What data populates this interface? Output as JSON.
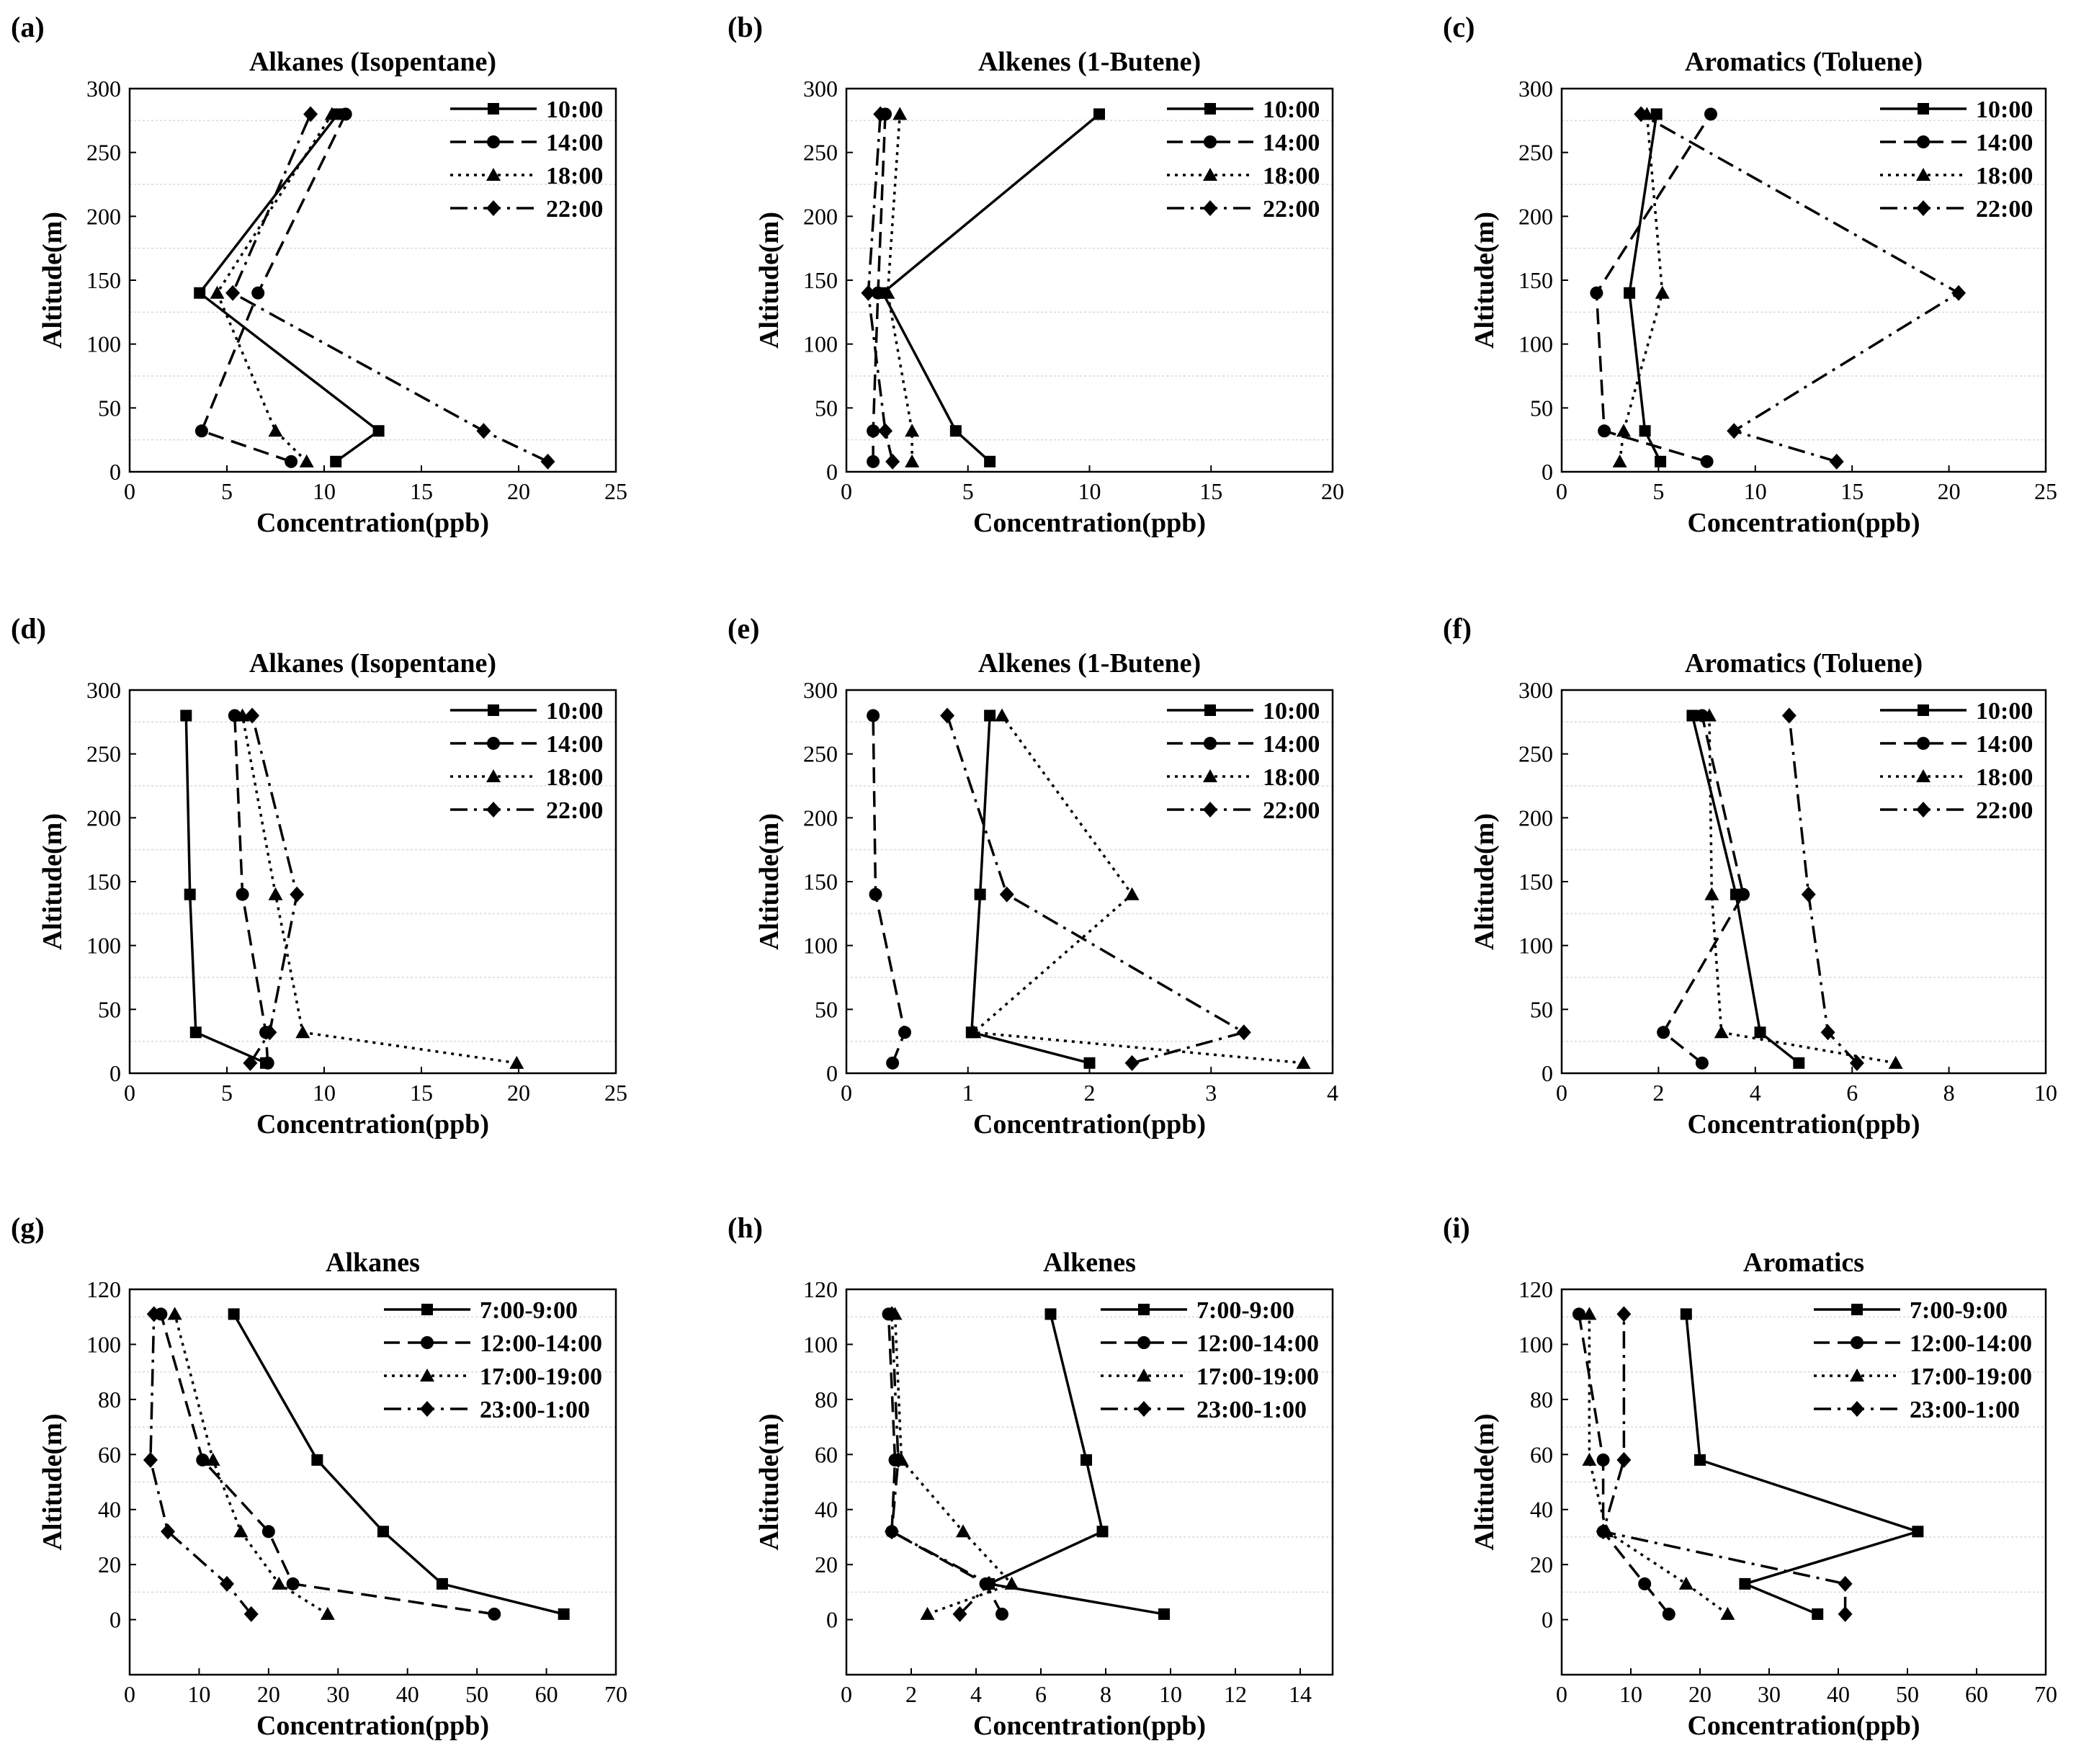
{
  "figure": {
    "legend_styles": [
      {
        "dash": "solid",
        "marker": "square"
      },
      {
        "dash": "dashed",
        "marker": "circle"
      },
      {
        "dash": "dotted",
        "marker": "triangle"
      },
      {
        "dash": "dashdot",
        "marker": "diamond"
      }
    ]
  },
  "chart_data": [
    {
      "panel": "(a)",
      "type": "line",
      "title": "Alkanes (Isopentane)",
      "xlabel": "Concentration(ppb)",
      "ylabel": "Altitude(m)",
      "xlim": [
        0,
        25
      ],
      "xticks": [
        0,
        5,
        10,
        15,
        20,
        25
      ],
      "ylim": [
        0,
        300
      ],
      "yticks": [
        0,
        50,
        100,
        150,
        200,
        250,
        300
      ],
      "gridlines": [
        25,
        75,
        125,
        175,
        225,
        275
      ],
      "legend_position": "top-right",
      "series": [
        {
          "name": "10:00",
          "points": [
            [
              10.6,
              8
            ],
            [
              12.8,
              32
            ],
            [
              3.6,
              140
            ],
            [
              10.7,
              280
            ]
          ]
        },
        {
          "name": "14:00",
          "points": [
            [
              8.3,
              8
            ],
            [
              3.7,
              32
            ],
            [
              6.6,
              140
            ],
            [
              11.1,
              280
            ]
          ]
        },
        {
          "name": "18:00",
          "points": [
            [
              9.1,
              8
            ],
            [
              7.5,
              32
            ],
            [
              4.5,
              140
            ],
            [
              10.4,
              280
            ]
          ]
        },
        {
          "name": "22:00",
          "points": [
            [
              21.5,
              8
            ],
            [
              18.2,
              32
            ],
            [
              5.3,
              140
            ],
            [
              9.3,
              280
            ]
          ]
        }
      ]
    },
    {
      "panel": "(b)",
      "type": "line",
      "title": "Alkenes (1-Butene)",
      "xlabel": "Concentration(ppb)",
      "ylabel": "Altitude(m)",
      "xlim": [
        0,
        20
      ],
      "xticks": [
        0,
        5,
        10,
        15,
        20
      ],
      "ylim": [
        0,
        300
      ],
      "yticks": [
        0,
        50,
        100,
        150,
        200,
        250,
        300
      ],
      "gridlines": [
        25,
        75,
        125,
        175,
        225,
        275
      ],
      "legend_position": "top-right",
      "series": [
        {
          "name": "10:00",
          "points": [
            [
              5.9,
              8
            ],
            [
              4.5,
              32
            ],
            [
              1.5,
              140
            ],
            [
              10.4,
              280
            ]
          ]
        },
        {
          "name": "14:00",
          "points": [
            [
              1.1,
              8
            ],
            [
              1.1,
              32
            ],
            [
              1.3,
              140
            ],
            [
              1.6,
              280
            ]
          ]
        },
        {
          "name": "18:00",
          "points": [
            [
              2.7,
              8
            ],
            [
              2.7,
              32
            ],
            [
              1.7,
              140
            ],
            [
              2.2,
              280
            ]
          ]
        },
        {
          "name": "22:00",
          "points": [
            [
              1.9,
              8
            ],
            [
              1.6,
              32
            ],
            [
              0.9,
              140
            ],
            [
              1.4,
              280
            ]
          ]
        }
      ]
    },
    {
      "panel": "(c)",
      "type": "line",
      "title": "Aromatics (Toluene)",
      "xlabel": "Concentration(ppb)",
      "ylabel": "Altitude(m)",
      "xlim": [
        0,
        25
      ],
      "xticks": [
        0,
        5,
        10,
        15,
        20,
        25
      ],
      "ylim": [
        0,
        300
      ],
      "yticks": [
        0,
        50,
        100,
        150,
        200,
        250,
        300
      ],
      "gridlines": [
        25,
        75,
        125,
        175,
        225,
        275
      ],
      "legend_position": "top-right",
      "series": [
        {
          "name": "10:00",
          "points": [
            [
              5.1,
              8
            ],
            [
              4.3,
              32
            ],
            [
              3.5,
              140
            ],
            [
              4.9,
              280
            ]
          ]
        },
        {
          "name": "14:00",
          "points": [
            [
              7.5,
              8
            ],
            [
              2.2,
              32
            ],
            [
              1.8,
              140
            ],
            [
              7.7,
              280
            ]
          ]
        },
        {
          "name": "18:00",
          "points": [
            [
              3.0,
              8
            ],
            [
              3.2,
              32
            ],
            [
              5.2,
              140
            ],
            [
              4.4,
              280
            ]
          ]
        },
        {
          "name": "22:00",
          "points": [
            [
              14.2,
              8
            ],
            [
              8.9,
              32
            ],
            [
              20.5,
              140
            ],
            [
              4.1,
              280
            ]
          ]
        }
      ]
    },
    {
      "panel": "(d)",
      "type": "line",
      "title": "Alkanes (Isopentane)",
      "xlabel": "Concentration(ppb)",
      "ylabel": "Altitude(m)",
      "xlim": [
        0,
        25
      ],
      "xticks": [
        0,
        5,
        10,
        15,
        20,
        25
      ],
      "ylim": [
        0,
        300
      ],
      "yticks": [
        0,
        50,
        100,
        150,
        200,
        250,
        300
      ],
      "gridlines": [
        25,
        75,
        125,
        175,
        225,
        275
      ],
      "legend_position": "top-right",
      "series": [
        {
          "name": "10:00",
          "points": [
            [
              7.0,
              8
            ],
            [
              3.4,
              32
            ],
            [
              3.1,
              140
            ],
            [
              2.9,
              280
            ]
          ]
        },
        {
          "name": "14:00",
          "points": [
            [
              7.1,
              8
            ],
            [
              7.0,
              32
            ],
            [
              5.8,
              140
            ],
            [
              5.4,
              280
            ]
          ]
        },
        {
          "name": "18:00",
          "points": [
            [
              19.9,
              8
            ],
            [
              8.9,
              32
            ],
            [
              7.5,
              140
            ],
            [
              5.8,
              280
            ]
          ]
        },
        {
          "name": "22:00",
          "points": [
            [
              6.2,
              8
            ],
            [
              7.2,
              32
            ],
            [
              8.6,
              140
            ],
            [
              6.3,
              280
            ]
          ]
        }
      ]
    },
    {
      "panel": "(e)",
      "type": "line",
      "title": "Alkenes (1-Butene)",
      "xlabel": "Concentration(ppb)",
      "ylabel": "Altitude(m)",
      "xlim": [
        0,
        4
      ],
      "xticks": [
        0,
        1,
        2,
        3,
        4
      ],
      "ylim": [
        0,
        300
      ],
      "yticks": [
        0,
        50,
        100,
        150,
        200,
        250,
        300
      ],
      "gridlines": [
        25,
        75,
        125,
        175,
        225,
        275
      ],
      "legend_position": "top-right",
      "series": [
        {
          "name": "10:00",
          "points": [
            [
              2.0,
              8
            ],
            [
              1.03,
              32
            ],
            [
              1.1,
              140
            ],
            [
              1.18,
              280
            ]
          ]
        },
        {
          "name": "14:00",
          "points": [
            [
              0.38,
              8
            ],
            [
              0.48,
              32
            ],
            [
              0.24,
              140
            ],
            [
              0.22,
              280
            ]
          ]
        },
        {
          "name": "18:00",
          "points": [
            [
              3.76,
              8
            ],
            [
              1.05,
              32
            ],
            [
              2.35,
              140
            ],
            [
              1.28,
              280
            ]
          ]
        },
        {
          "name": "22:00",
          "points": [
            [
              2.35,
              8
            ],
            [
              3.27,
              32
            ],
            [
              1.32,
              140
            ],
            [
              0.83,
              280
            ]
          ]
        }
      ]
    },
    {
      "panel": "(f)",
      "type": "line",
      "title": "Aromatics (Toluene)",
      "xlabel": "Concentration(ppb)",
      "ylabel": "Altitude(m)",
      "xlim": [
        0,
        10
      ],
      "xticks": [
        0,
        2,
        4,
        6,
        8,
        10
      ],
      "ylim": [
        0,
        300
      ],
      "yticks": [
        0,
        50,
        100,
        150,
        200,
        250,
        300
      ],
      "gridlines": [
        25,
        75,
        125,
        175,
        225,
        275
      ],
      "legend_position": "top-right",
      "series": [
        {
          "name": "10:00",
          "points": [
            [
              4.9,
              8
            ],
            [
              4.1,
              32
            ],
            [
              3.6,
              140
            ],
            [
              2.7,
              280
            ]
          ]
        },
        {
          "name": "14:00",
          "points": [
            [
              2.9,
              8
            ],
            [
              2.1,
              32
            ],
            [
              3.75,
              140
            ],
            [
              2.9,
              280
            ]
          ]
        },
        {
          "name": "18:00",
          "points": [
            [
              6.9,
              8
            ],
            [
              3.3,
              32
            ],
            [
              3.1,
              140
            ],
            [
              3.05,
              280
            ]
          ]
        },
        {
          "name": "22:00",
          "points": [
            [
              6.1,
              8
            ],
            [
              5.5,
              32
            ],
            [
              5.1,
              140
            ],
            [
              4.7,
              280
            ]
          ]
        }
      ]
    },
    {
      "panel": "(g)",
      "type": "line",
      "title": "Alkanes",
      "xlabel": "Concentration(ppb)",
      "ylabel": "Altitude(m)",
      "xlim": [
        0,
        70
      ],
      "xticks": [
        0,
        10,
        20,
        30,
        40,
        50,
        60,
        70
      ],
      "ylim": [
        -20,
        120
      ],
      "yticks": [
        0,
        20,
        40,
        60,
        80,
        100,
        120
      ],
      "gridlines": [
        10,
        30,
        50,
        70,
        90,
        110
      ],
      "legend_position": "top-right",
      "series": [
        {
          "name": "7:00-9:00",
          "points": [
            [
              62.5,
              2
            ],
            [
              45,
              13
            ],
            [
              36.5,
              32
            ],
            [
              27,
              58
            ],
            [
              15,
              111
            ]
          ]
        },
        {
          "name": "12:00-14:00",
          "points": [
            [
              52.5,
              2
            ],
            [
              23.5,
              13
            ],
            [
              20,
              32
            ],
            [
              10.5,
              58
            ],
            [
              4.5,
              111
            ]
          ]
        },
        {
          "name": "17:00-19:00",
          "points": [
            [
              28.5,
              2
            ],
            [
              21.5,
              13
            ],
            [
              16,
              32
            ],
            [
              12,
              58
            ],
            [
              6.5,
              111
            ]
          ]
        },
        {
          "name": "23:00-1:00",
          "points": [
            [
              17.5,
              2
            ],
            [
              14,
              13
            ],
            [
              5.5,
              32
            ],
            [
              3,
              58
            ],
            [
              3.5,
              111
            ]
          ]
        }
      ]
    },
    {
      "panel": "(h)",
      "type": "line",
      "title": "Alkenes",
      "xlabel": "Concentration(ppb)",
      "ylabel": "Altitude(m)",
      "xlim": [
        0,
        15
      ],
      "xticks": [
        0,
        2,
        4,
        6,
        8,
        10,
        12,
        14
      ],
      "ylim": [
        -20,
        120
      ],
      "yticks": [
        0,
        20,
        40,
        60,
        80,
        100,
        120
      ],
      "gridlines": [
        10,
        30,
        50,
        70,
        90,
        110
      ],
      "legend_position": "top-right",
      "series": [
        {
          "name": "7:00-9:00",
          "points": [
            [
              9.8,
              2
            ],
            [
              4.4,
              13
            ],
            [
              7.9,
              32
            ],
            [
              7.4,
              58
            ],
            [
              6.3,
              111
            ]
          ]
        },
        {
          "name": "12:00-14:00",
          "points": [
            [
              4.8,
              2
            ],
            [
              4.3,
              13
            ],
            [
              1.4,
              32
            ],
            [
              1.5,
              58
            ],
            [
              1.3,
              111
            ]
          ]
        },
        {
          "name": "17:00-19:00",
          "points": [
            [
              2.5,
              2
            ],
            [
              5.1,
              13
            ],
            [
              3.6,
              32
            ],
            [
              1.7,
              58
            ],
            [
              1.5,
              111
            ]
          ]
        },
        {
          "name": "23:00-1:00",
          "points": [
            [
              3.5,
              2
            ],
            [
              4.4,
              13
            ],
            [
              1.4,
              32
            ],
            [
              1.6,
              58
            ],
            [
              1.4,
              111
            ]
          ]
        }
      ]
    },
    {
      "panel": "(i)",
      "type": "line",
      "title": "Aromatics",
      "xlabel": "Concentration(ppb)",
      "ylabel": "Altitude(m)",
      "xlim": [
        0,
        70
      ],
      "xticks": [
        0,
        10,
        20,
        30,
        40,
        50,
        60,
        70
      ],
      "ylim": [
        -20,
        120
      ],
      "yticks": [
        0,
        20,
        40,
        60,
        80,
        100,
        120
      ],
      "gridlines": [
        10,
        30,
        50,
        70,
        90,
        110
      ],
      "legend_position": "top-right",
      "series": [
        {
          "name": "7:00-9:00",
          "points": [
            [
              37,
              2
            ],
            [
              26.5,
              13
            ],
            [
              51.5,
              32
            ],
            [
              20,
              58
            ],
            [
              18,
              111
            ]
          ]
        },
        {
          "name": "12:00-14:00",
          "points": [
            [
              15.5,
              2
            ],
            [
              12,
              13
            ],
            [
              6,
              32
            ],
            [
              6,
              58
            ],
            [
              2.5,
              111
            ]
          ]
        },
        {
          "name": "17:00-19:00",
          "points": [
            [
              24,
              2
            ],
            [
              18,
              13
            ],
            [
              6.5,
              32
            ],
            [
              4,
              58
            ],
            [
              4,
              111
            ]
          ]
        },
        {
          "name": "23:00-1:00",
          "points": [
            [
              41,
              2
            ],
            [
              41,
              13
            ],
            [
              6,
              32
            ],
            [
              9,
              58
            ],
            [
              9,
              111
            ]
          ]
        }
      ]
    }
  ]
}
